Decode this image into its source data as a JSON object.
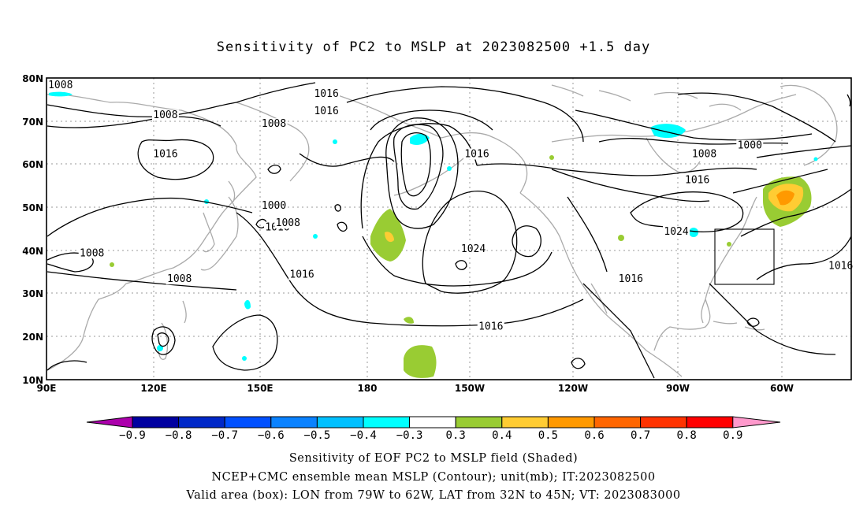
{
  "title": "Sensitivity of PC2 to MSLP at 2023082500 +1.5 day",
  "map": {
    "lon_range": [
      "90E",
      "300E(60W)+"
    ],
    "lat_range": [
      10,
      80
    ],
    "lat_labels": [
      "80N",
      "70N",
      "60N",
      "50N",
      "40N",
      "30N",
      "20N",
      "10N"
    ],
    "lon_labels": [
      "90E",
      "120E",
      "150E",
      "180",
      "150W",
      "120W",
      "90W",
      "60W"
    ],
    "grid": "dotted",
    "contour_labels": [
      {
        "text": "1008",
        "lon": 94,
        "lat": 78
      },
      {
        "text": "1016",
        "lon": 170,
        "lat": 76
      },
      {
        "text": "1008",
        "lon": 124,
        "lat": 71
      },
      {
        "text": "1016",
        "lon": 170,
        "lat": 72
      },
      {
        "text": "1008",
        "lon": 155,
        "lat": 69
      },
      {
        "text": "1016",
        "lon": 124,
        "lat": 62
      },
      {
        "text": "1016",
        "lon": 213,
        "lat": 62
      },
      {
        "text": "1008",
        "lon": 278,
        "lat": 62
      },
      {
        "text": "1000",
        "lon": 291,
        "lat": 64
      },
      {
        "text": "1016",
        "lon": 276,
        "lat": 56
      },
      {
        "text": "1000",
        "lon": 155,
        "lat": 50
      },
      {
        "text": "1016",
        "lon": 156,
        "lat": 45
      },
      {
        "text": "1008",
        "lon": 159,
        "lat": 46
      },
      {
        "text": "1024",
        "lon": 270,
        "lat": 44
      },
      {
        "text": "1024",
        "lon": 212,
        "lat": 40
      },
      {
        "text": "1008",
        "lon": 103,
        "lat": 39
      },
      {
        "text": "1016",
        "lon": 163,
        "lat": 34
      },
      {
        "text": "1016",
        "lon": 257,
        "lat": 33
      },
      {
        "text": "1016",
        "lon": 317,
        "lat": 36
      },
      {
        "text": "1008",
        "lon": 128,
        "lat": 33
      },
      {
        "text": "1016",
        "lon": 217,
        "lat": 22
      }
    ],
    "valid_box": {
      "lon_w": 281,
      "lon_e": 298,
      "lat_s": 32,
      "lat_n": 45
    }
  },
  "colorbar": {
    "labels": [
      "−0.9",
      "−0.8",
      "−0.7",
      "−0.6",
      "−0.5",
      "−0.4",
      "−0.3",
      "0.3",
      "0.4",
      "0.5",
      "0.6",
      "0.7",
      "0.8",
      "0.9"
    ],
    "colors": [
      "#ac00ac",
      "#0000a0",
      "#0028c8",
      "#0050ff",
      "#0a82ff",
      "#00c0ff",
      "#00ffff",
      "#ffffff",
      "#99cc33",
      "#ffcc33",
      "#ff9900",
      "#ff6600",
      "#ff3300",
      "#ff0000",
      "#ff99cc"
    ]
  },
  "footer": {
    "line1": "Sensitivity of EOF PC2 to MSLP field (Shaded)",
    "line2": "NCEP+CMC ensemble mean MSLP (Contour); unit(mb); IT:2023082500",
    "line3": "Valid area (box): LON from 79W to 62W, LAT from 32N to 45N; VT: 2023083000"
  }
}
